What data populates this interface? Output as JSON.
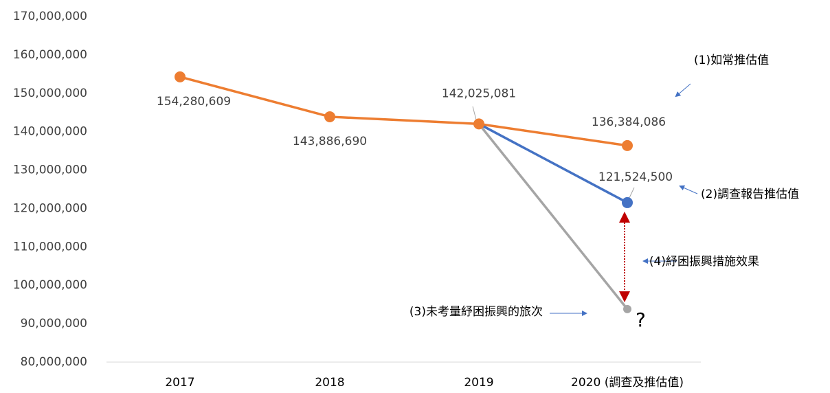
{
  "chart_data": {
    "type": "line",
    "categories": [
      "2017",
      "2018",
      "2019",
      "2020 (調查及推估值)"
    ],
    "series": [
      {
        "name": "(1)如常推估值",
        "color": "#ed7d31",
        "values": [
          154280609,
          143886690,
          142025081,
          136384086
        ],
        "value_labels": [
          "154,280,609",
          "143,886,690",
          "142,025,081",
          "136,384,086"
        ]
      },
      {
        "name": "(2)調查報告推估值",
        "color": "#4472c4",
        "values": [
          null,
          null,
          142025081,
          121524500
        ],
        "value_labels": [
          null,
          null,
          null,
          "121,524,500"
        ]
      },
      {
        "name": "(3)未考量紓困振興的旅次",
        "color": "#a5a5a5",
        "values": [
          null,
          null,
          142025081,
          93800000
        ]
      }
    ],
    "annotations": [
      "(4)紓困振興措施效果",
      "?"
    ],
    "ylim": [
      80000000,
      170000000
    ],
    "yticks": [
      {
        "value": 80000000,
        "label": "80,000,000"
      },
      {
        "value": 90000000,
        "label": "90,000,000"
      },
      {
        "value": 100000000,
        "label": "100,000,000"
      },
      {
        "value": 110000000,
        "label": "110,000,000"
      },
      {
        "value": 120000000,
        "label": "120,000,000"
      },
      {
        "value": 130000000,
        "label": "130,000,000"
      },
      {
        "value": 140000000,
        "label": "140,000,000"
      },
      {
        "value": 150000000,
        "label": "150,000,000"
      },
      {
        "value": 160000000,
        "label": "160,000,000"
      },
      {
        "value": 170000000,
        "label": "170,000,000"
      }
    ],
    "grid": false
  }
}
